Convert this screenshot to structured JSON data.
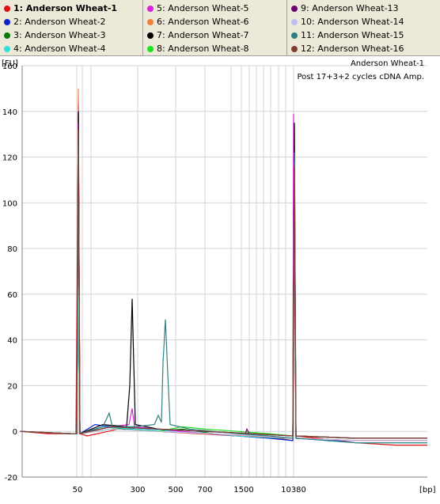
{
  "legend": {
    "items": [
      {
        "label": "1: Anderson Wheat-1",
        "color": "#e01010",
        "selected": true
      },
      {
        "label": "2: Anderson Wheat-2",
        "color": "#1020d0"
      },
      {
        "label": "3: Anderson Wheat-3",
        "color": "#0a7a0a"
      },
      {
        "label": "4: Anderson Wheat-4",
        "color": "#30e0e0"
      },
      {
        "label": "5: Anderson Wheat-5",
        "color": "#e020e0"
      },
      {
        "label": "6: Anderson Wheat-6",
        "color": "#f08040"
      },
      {
        "label": "7: Anderson Wheat-7",
        "color": "#000000"
      },
      {
        "label": "8: Anderson Wheat-8",
        "color": "#20e020"
      },
      {
        "label": "9: Anderson Wheat-13",
        "color": "#700070"
      },
      {
        "label": "10: Anderson Wheat-14",
        "color": "#c0c0f0"
      },
      {
        "label": "11: Anderson Wheat-15",
        "color": "#308080"
      },
      {
        "label": "12: Anderson Wheat-16",
        "color": "#804030"
      }
    ]
  },
  "chart_data": {
    "type": "line",
    "title": "Anderson Wheat-1",
    "subtitle": "Post 17+3+2 cycles cDNA Amp.",
    "ylabel": "[FU]",
    "xlabel": "[bp]",
    "ylim": [
      -20,
      160
    ],
    "yticks": [
      -20,
      0,
      20,
      40,
      60,
      80,
      100,
      120,
      140,
      160
    ],
    "xtick_labels": [
      "50",
      "300",
      "500",
      "700",
      "1500",
      "10380"
    ],
    "grid": true,
    "series": [
      {
        "name": "1: Anderson Wheat-1",
        "color": "#e01010",
        "points": [
          [
            25,
            0
          ],
          [
            60,
            -1
          ],
          [
            90,
            -1
          ],
          [
            96,
            -1
          ],
          [
            99,
            138
          ],
          [
            101,
            -1
          ],
          [
            110,
            -2
          ],
          [
            150,
            1
          ],
          [
            200,
            0
          ],
          [
            250,
            -1
          ],
          [
            300,
            -2
          ],
          [
            350,
            -3
          ],
          [
            370,
            -4
          ],
          [
            371,
            120
          ],
          [
            374,
            -2
          ],
          [
            400,
            -3
          ],
          [
            450,
            -5
          ],
          [
            500,
            -6
          ],
          [
            540,
            -6
          ]
        ]
      },
      {
        "name": "2: Anderson Wheat-2",
        "color": "#1020d0",
        "points": [
          [
            25,
            0
          ],
          [
            90,
            -1
          ],
          [
            97,
            -1
          ],
          [
            99,
            143
          ],
          [
            101,
            -1
          ],
          [
            120,
            3
          ],
          [
            140,
            2
          ],
          [
            170,
            1
          ],
          [
            200,
            0
          ],
          [
            260,
            -1
          ],
          [
            300,
            -2
          ],
          [
            340,
            -3
          ],
          [
            370,
            -4
          ],
          [
            372,
            110
          ],
          [
            374,
            -3
          ],
          [
            420,
            -4
          ],
          [
            500,
            -4
          ],
          [
            540,
            -4
          ]
        ]
      },
      {
        "name": "3: Anderson Wheat-3",
        "color": "#0a7a0a",
        "points": [
          [
            25,
            0
          ],
          [
            90,
            -1
          ],
          [
            97,
            -1
          ],
          [
            99,
            120
          ],
          [
            101,
            -1
          ],
          [
            130,
            2
          ],
          [
            160,
            1
          ],
          [
            200,
            0
          ],
          [
            230,
            1
          ],
          [
            270,
            -1
          ],
          [
            310,
            -2
          ],
          [
            360,
            -3
          ],
          [
            370,
            -3
          ],
          [
            372,
            115
          ],
          [
            374,
            -3
          ],
          [
            450,
            -4
          ],
          [
            540,
            -4
          ]
        ]
      },
      {
        "name": "4: Anderson Wheat-4",
        "color": "#30e0e0",
        "points": [
          [
            25,
            0
          ],
          [
            90,
            -1
          ],
          [
            97,
            -1
          ],
          [
            98,
            70
          ],
          [
            100,
            -1
          ],
          [
            130,
            2
          ],
          [
            170,
            1
          ],
          [
            230,
            0
          ],
          [
            300,
            -2
          ],
          [
            360,
            -3
          ],
          [
            371,
            -3
          ],
          [
            372,
            125
          ],
          [
            374,
            -3
          ],
          [
            450,
            -5
          ],
          [
            540,
            -5
          ]
        ]
      },
      {
        "name": "5: Anderson Wheat-5",
        "color": "#e020e0",
        "points": [
          [
            25,
            0
          ],
          [
            90,
            -1
          ],
          [
            97,
            -1
          ],
          [
            99,
            145
          ],
          [
            101,
            -1
          ],
          [
            140,
            2
          ],
          [
            163,
            3
          ],
          [
            167,
            10
          ],
          [
            170,
            2
          ],
          [
            200,
            1
          ],
          [
            260,
            -1
          ],
          [
            320,
            -2
          ],
          [
            370,
            -3
          ],
          [
            371,
            139
          ],
          [
            374,
            -3
          ],
          [
            450,
            -4
          ],
          [
            540,
            -4
          ]
        ]
      },
      {
        "name": "6: Anderson Wheat-6",
        "color": "#f08040",
        "points": [
          [
            25,
            0
          ],
          [
            90,
            -1
          ],
          [
            97,
            -1
          ],
          [
            99,
            150
          ],
          [
            101,
            -1
          ],
          [
            140,
            1
          ],
          [
            200,
            0
          ],
          [
            260,
            -1
          ],
          [
            320,
            -2
          ],
          [
            370,
            -3
          ],
          [
            372,
            112
          ],
          [
            374,
            -3
          ],
          [
            450,
            -4
          ],
          [
            540,
            -4
          ]
        ]
      },
      {
        "name": "7: Anderson Wheat-7",
        "color": "#000000",
        "points": [
          [
            25,
            0
          ],
          [
            90,
            -1
          ],
          [
            97,
            -1
          ],
          [
            99,
            140
          ],
          [
            101,
            -1
          ],
          [
            130,
            3
          ],
          [
            160,
            2
          ],
          [
            164,
            20
          ],
          [
            167,
            58
          ],
          [
            169,
            30
          ],
          [
            171,
            3
          ],
          [
            200,
            1
          ],
          [
            260,
            0
          ],
          [
            320,
            -1
          ],
          [
            370,
            -2
          ],
          [
            372,
            135
          ],
          [
            374,
            -2
          ],
          [
            450,
            -3
          ],
          [
            540,
            -3
          ]
        ]
      },
      {
        "name": "8: Anderson Wheat-8",
        "color": "#20e020",
        "points": [
          [
            25,
            0
          ],
          [
            90,
            -1
          ],
          [
            97,
            -1
          ],
          [
            99,
            130
          ],
          [
            101,
            -1
          ],
          [
            140,
            1
          ],
          [
            200,
            0
          ],
          [
            230,
            2
          ],
          [
            260,
            1
          ],
          [
            300,
            0
          ],
          [
            340,
            -1
          ],
          [
            370,
            -2
          ],
          [
            372,
            120
          ],
          [
            374,
            -2
          ],
          [
            450,
            -3
          ],
          [
            540,
            -3
          ]
        ]
      },
      {
        "name": "9: Anderson Wheat-13",
        "color": "#700070",
        "points": [
          [
            25,
            0
          ],
          [
            90,
            -1
          ],
          [
            97,
            -1
          ],
          [
            99,
            135
          ],
          [
            101,
            -1
          ],
          [
            140,
            2
          ],
          [
            200,
            1
          ],
          [
            260,
            0
          ],
          [
            310,
            -1
          ],
          [
            312,
            1
          ],
          [
            315,
            -1
          ],
          [
            370,
            -2
          ],
          [
            372,
            114
          ],
          [
            374,
            -2
          ],
          [
            450,
            -3
          ],
          [
            540,
            -3
          ]
        ]
      },
      {
        "name": "10: Anderson Wheat-14",
        "color": "#c0c0f0",
        "points": [
          [
            25,
            0
          ],
          [
            90,
            -1
          ],
          [
            97,
            -1
          ],
          [
            99,
            125
          ],
          [
            101,
            -1
          ],
          [
            140,
            1
          ],
          [
            200,
            0
          ],
          [
            270,
            -1
          ],
          [
            330,
            -2
          ],
          [
            370,
            -3
          ],
          [
            372,
            118
          ],
          [
            374,
            -3
          ],
          [
            450,
            -4
          ],
          [
            540,
            -4
          ]
        ]
      },
      {
        "name": "11: Anderson Wheat-15",
        "color": "#308080",
        "points": [
          [
            25,
            0
          ],
          [
            90,
            -1
          ],
          [
            97,
            -1
          ],
          [
            99,
            128
          ],
          [
            101,
            -1
          ],
          [
            130,
            2
          ],
          [
            138,
            8
          ],
          [
            142,
            2
          ],
          [
            170,
            2
          ],
          [
            195,
            3
          ],
          [
            200,
            7
          ],
          [
            204,
            4
          ],
          [
            206,
            30
          ],
          [
            209,
            49
          ],
          [
            212,
            25
          ],
          [
            215,
            3
          ],
          [
            240,
            1
          ],
          [
            300,
            -1
          ],
          [
            340,
            -2
          ],
          [
            370,
            -3
          ],
          [
            372,
            122
          ],
          [
            374,
            -3
          ],
          [
            450,
            -5
          ],
          [
            540,
            -5
          ]
        ]
      },
      {
        "name": "12: Anderson Wheat-16",
        "color": "#804030",
        "points": [
          [
            25,
            0
          ],
          [
            90,
            -1
          ],
          [
            97,
            -1
          ],
          [
            99,
            132
          ],
          [
            101,
            -1
          ],
          [
            140,
            2
          ],
          [
            200,
            1
          ],
          [
            260,
            0
          ],
          [
            320,
            -1
          ],
          [
            370,
            -2
          ],
          [
            372,
            116
          ],
          [
            374,
            -2
          ],
          [
            450,
            -3
          ],
          [
            540,
            -3
          ]
        ]
      }
    ]
  }
}
